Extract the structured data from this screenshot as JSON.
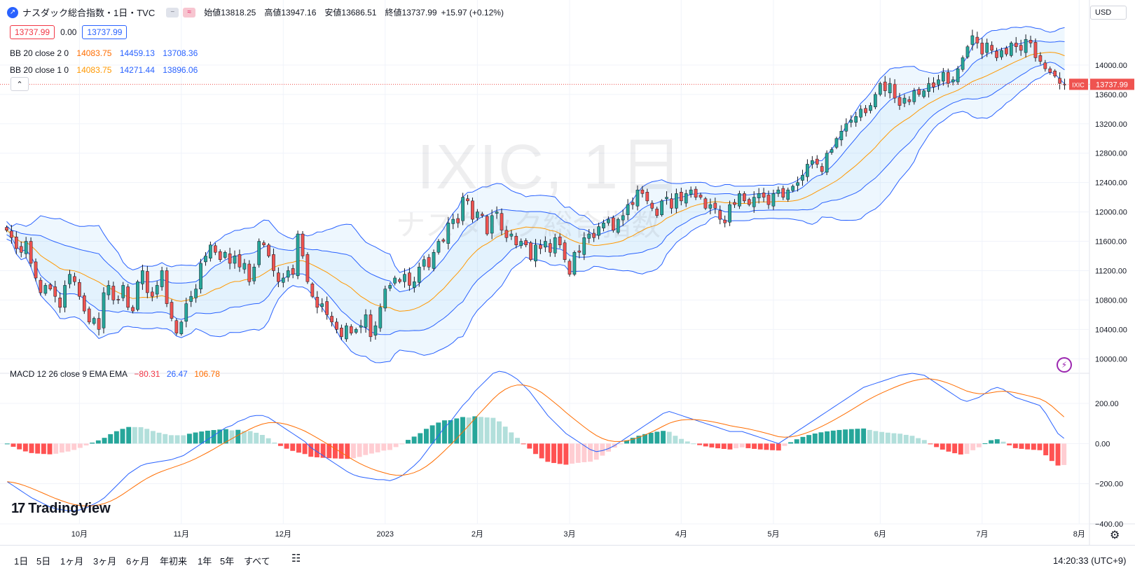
{
  "header": {
    "symbol_icon": "chart-logo-icon",
    "title": "ナスダック総合指数・1日・TVC",
    "open_label": "始値",
    "open": "13818.25",
    "high_label": "高値",
    "high": "13947.16",
    "low_label": "安値",
    "low": "13686.51",
    "close_label": "終値",
    "close": "13737.99",
    "change": "+15.97 (+0.12%)",
    "bid": "13737.99",
    "spread": "0.00",
    "ask": "13737.99"
  },
  "indicators": {
    "bb2": {
      "label": "BB 20 close 2 0",
      "basis": "14083.75",
      "upper": "14459.13",
      "lower": "13708.36"
    },
    "bb1": {
      "label": "BB 20 close 1 0",
      "basis": "14083.75",
      "upper": "14271.44",
      "lower": "13896.06"
    },
    "macd": {
      "label": "MACD 12 26 close 9 EMA EMA",
      "hist": "−80.31",
      "macd": "26.47",
      "signal": "106.78"
    }
  },
  "watermark": {
    "line1": "IXIC, 1日",
    "line2": "ナスダック総合指数"
  },
  "currency": "USD",
  "logo": "TradingView",
  "price_tag": {
    "symbol": "IXIC",
    "value": "13737.99"
  },
  "timeframes": [
    "1日",
    "5日",
    "1ヶ月",
    "3ヶ月",
    "6ヶ月",
    "年初来",
    "1年",
    "5年",
    "すべて"
  ],
  "clock": "14:20:33 (UTC+9)",
  "colors": {
    "up": "#26a69a",
    "down": "#ef5350",
    "bb_outer": "#2962ff",
    "basis": "#ff9800",
    "hist_up": "#26a69a",
    "hist_down": "#ff5252",
    "signal": "#ff6d00"
  },
  "chart_data": {
    "type": "candlestick",
    "price_axis": {
      "ticks": [
        10000,
        10400,
        10800,
        11200,
        11600,
        12000,
        12400,
        12800,
        13200,
        13600,
        14000
      ],
      "range": [
        9850,
        14600
      ]
    },
    "macd_axis": {
      "ticks": [
        -400,
        -200,
        0,
        200
      ],
      "range": [
        -400,
        350
      ]
    },
    "x_labels": [
      "10月",
      "11月",
      "12月",
      "2023",
      "2月",
      "3月",
      "4月",
      "5月",
      "6月",
      "7月",
      "8月"
    ],
    "x_label_index": [
      15,
      36,
      57,
      78,
      97,
      116,
      139,
      158,
      180,
      201,
      221
    ],
    "closes": [
      11750,
      11650,
      11500,
      11450,
      11600,
      11300,
      11100,
      10900,
      11000,
      10950,
      10850,
      10700,
      11000,
      11150,
      11050,
      10850,
      10650,
      10500,
      10550,
      10400,
      10900,
      11000,
      10800,
      10800,
      11000,
      10700,
      10650,
      11050,
      11200,
      10900,
      10850,
      11000,
      11200,
      10750,
      10550,
      10350,
      10500,
      10750,
      10850,
      10950,
      11300,
      11400,
      11550,
      11450,
      11350,
      11450,
      11300,
      11400,
      11250,
      11300,
      11050,
      11250,
      11600,
      11550,
      11400,
      11200,
      11050,
      11100,
      11200,
      11150,
      11700,
      11400,
      11050,
      10850,
      10700,
      10750,
      10600,
      10500,
      10400,
      10300,
      10450,
      10350,
      10400,
      10450,
      10600,
      10300,
      10450,
      10700,
      10950,
      11000,
      11100,
      11050,
      11150,
      11000,
      11050,
      11250,
      11350,
      11250,
      11450,
      11600,
      11600,
      11850,
      11900,
      11850,
      12200,
      12150,
      11900,
      12000,
      11950,
      11700,
      11950,
      12000,
      11750,
      11650,
      11700,
      11550,
      11600,
      11550,
      11350,
      11550,
      11500,
      11600,
      11450,
      11650,
      11550,
      11350,
      11150,
      11450,
      11450,
      11650,
      11700,
      11650,
      11800,
      11850,
      11900,
      11750,
      11900,
      11950,
      12100,
      12100,
      12300,
      12250,
      12150,
      12050,
      11950,
      12150,
      12200,
      12050,
      12250,
      12150,
      12250,
      12300,
      12200,
      12200,
      12050,
      12100,
      12050,
      11900,
      11850,
      12100,
      12100,
      12250,
      12150,
      12100,
      12200,
      12250,
      12200,
      12100,
      12250,
      12300,
      12200,
      12300,
      12350,
      12400,
      12500,
      12650,
      12700,
      12650,
      12550,
      12800,
      12850,
      13000,
      13100,
      13200,
      13250,
      13300,
      13400,
      13350,
      13450,
      13600,
      13750,
      13650,
      13750,
      13550,
      13450,
      13550,
      13500,
      13650,
      13600,
      13650,
      13750,
      13700,
      13800,
      13900,
      13750,
      13800,
      13950,
      14100,
      14250,
      14400,
      14300,
      14150,
      14300,
      14200,
      14100,
      14200,
      14150,
      14300,
      14250,
      14200,
      14350,
      14300,
      14100,
      14050,
      13950,
      13900,
      13850,
      13750,
      13738
    ],
    "macd_series": {
      "macd": [
        -190,
        -210,
        -230,
        -250,
        -270,
        -285,
        -300,
        -315,
        -325,
        -330,
        -335,
        -335,
        -330,
        -320,
        -305,
        -290,
        -270,
        -240,
        -210,
        -180,
        -150,
        -130,
        -110,
        -100,
        -95,
        -90,
        -85,
        -80,
        -70,
        -60,
        -40,
        -20,
        0,
        20,
        40,
        60,
        80,
        90,
        110,
        120,
        135,
        140,
        140,
        130,
        110,
        90,
        70,
        50,
        30,
        10,
        -20,
        -40,
        -60,
        -80,
        -100,
        -120,
        -140,
        -155,
        -165,
        -170,
        -175,
        -180,
        -180,
        -185,
        -175,
        -160,
        -135,
        -110,
        -80,
        -40,
        0,
        40,
        80,
        110,
        150,
        190,
        220,
        260,
        290,
        320,
        350,
        360,
        355,
        340,
        320,
        290,
        260,
        220,
        180,
        140,
        110,
        80,
        50,
        30,
        10,
        -10,
        -30,
        -40,
        -35,
        -25,
        -10,
        10,
        30,
        50,
        70,
        90,
        110,
        130,
        150,
        160,
        150,
        140,
        130,
        120,
        110,
        100,
        90,
        80,
        70,
        60,
        60,
        60,
        50,
        40,
        30,
        20,
        10,
        0,
        20,
        40,
        60,
        80,
        100,
        120,
        140,
        160,
        180,
        200,
        220,
        240,
        260,
        280,
        290,
        300,
        310,
        320,
        330,
        340,
        345,
        350,
        345,
        340,
        320,
        300,
        280,
        260,
        240,
        220,
        210,
        220,
        230,
        250,
        270,
        280,
        270,
        250,
        230,
        220,
        210,
        200,
        190,
        150,
        100,
        50,
        26
      ]
    }
  }
}
